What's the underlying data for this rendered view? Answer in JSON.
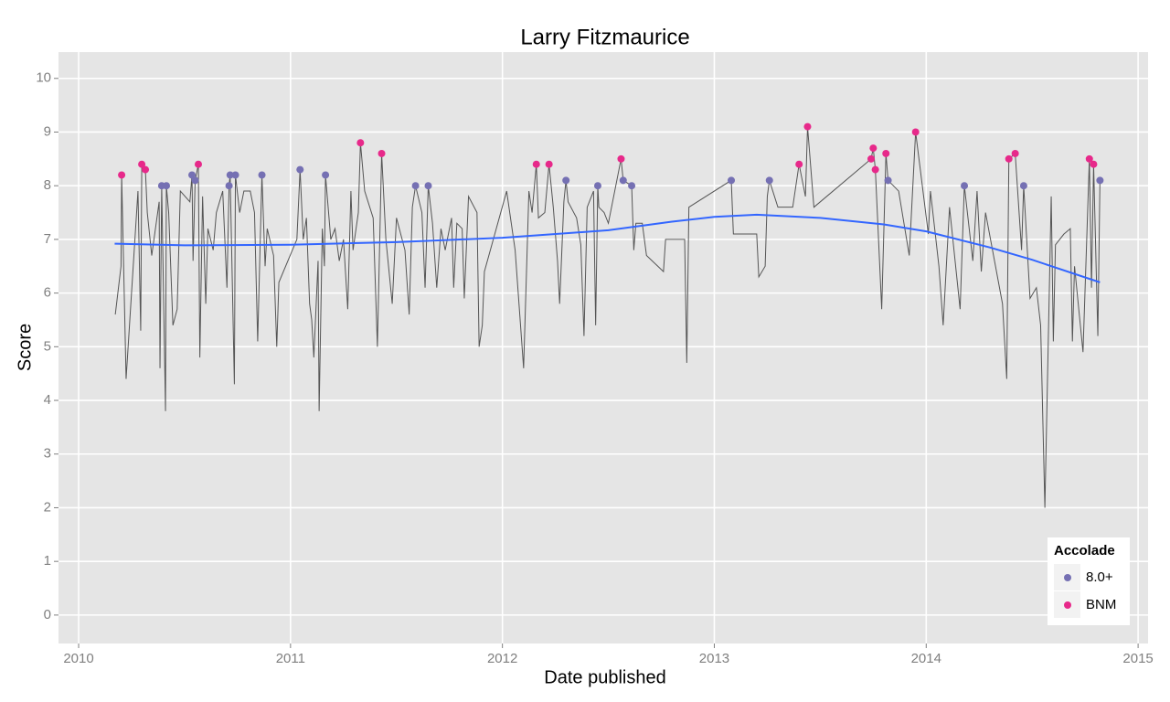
{
  "chart_data": {
    "type": "line",
    "title": "Larry Fitzmaurice",
    "x_label": "Date published",
    "y_label": "Score",
    "xlim": [
      2009.905,
      2015.047
    ],
    "ylim": [
      -0.53,
      10.49
    ],
    "xticks": [
      2010,
      2011,
      2012,
      2013,
      2014,
      2015
    ],
    "yticks": [
      0,
      1,
      2,
      3,
      4,
      5,
      6,
      7,
      8,
      9,
      10
    ],
    "grid": true,
    "line": {
      "color": "#555555",
      "x": [
        2010.173,
        2010.2,
        2010.203,
        2010.224,
        2010.28,
        2010.293,
        2010.298,
        2010.315,
        2010.324,
        2010.345,
        2010.38,
        2010.384,
        2010.392,
        2010.41,
        2010.414,
        2010.425,
        2010.445,
        2010.465,
        2010.48,
        2010.525,
        2010.535,
        2010.54,
        2010.55,
        2010.565,
        2010.572,
        2010.585,
        2010.6,
        2010.61,
        2010.635,
        2010.65,
        2010.68,
        2010.7,
        2010.71,
        2010.715,
        2010.735,
        2010.74,
        2010.76,
        2010.78,
        2010.81,
        2010.83,
        2010.845,
        2010.865,
        2010.88,
        2010.89,
        2010.92,
        2010.935,
        2010.945,
        2011.03,
        2011.045,
        2011.06,
        2011.075,
        2011.09,
        2011.1,
        2011.11,
        2011.13,
        2011.135,
        2011.15,
        2011.16,
        2011.165,
        2011.19,
        2011.21,
        2011.23,
        2011.25,
        2011.27,
        2011.285,
        2011.295,
        2011.32,
        2011.33,
        2011.35,
        2011.39,
        2011.41,
        2011.43,
        2011.45,
        2011.48,
        2011.5,
        2011.54,
        2011.56,
        2011.575,
        2011.59,
        2011.62,
        2011.635,
        2011.65,
        2011.67,
        2011.69,
        2011.71,
        2011.73,
        2011.76,
        2011.77,
        2011.785,
        2011.81,
        2011.82,
        2011.84,
        2011.88,
        2011.89,
        2011.905,
        2011.915,
        2012.02,
        2012.06,
        2012.1,
        2012.125,
        2012.14,
        2012.16,
        2012.17,
        2012.2,
        2012.22,
        2012.24,
        2012.26,
        2012.27,
        2012.29,
        2012.3,
        2012.31,
        2012.35,
        2012.37,
        2012.385,
        2012.4,
        2012.43,
        2012.44,
        2012.45,
        2012.455,
        2012.48,
        2012.5,
        2012.56,
        2012.57,
        2012.61,
        2012.62,
        2012.63,
        2012.66,
        2012.68,
        2012.76,
        2012.77,
        2012.86,
        2012.87,
        2012.88,
        2013.08,
        2013.09,
        2013.2,
        2013.21,
        2013.24,
        2013.25,
        2013.26,
        2013.3,
        2013.37,
        2013.4,
        2013.43,
        2013.44,
        2013.47,
        2013.74,
        2013.75,
        2013.76,
        2013.79,
        2013.81,
        2013.82,
        2013.87,
        2013.92,
        2013.95,
        2014.01,
        2014.02,
        2014.06,
        2014.08,
        2014.11,
        2014.16,
        2014.18,
        2014.22,
        2014.24,
        2014.26,
        2014.28,
        2014.36,
        2014.38,
        2014.39,
        2014.42,
        2014.45,
        2014.46,
        2014.49,
        2014.52,
        2014.54,
        2014.56,
        2014.59,
        2014.6,
        2014.61,
        2014.65,
        2014.68,
        2014.69,
        2014.7,
        2014.74,
        2014.77,
        2014.78,
        2014.79,
        2014.81,
        2014.82
      ],
      "values": [
        5.6,
        6.5,
        8.2,
        4.4,
        7.9,
        5.3,
        8.4,
        8.3,
        7.5,
        6.7,
        7.7,
        4.6,
        8.0,
        3.8,
        8.0,
        7.5,
        5.4,
        5.7,
        7.9,
        7.7,
        8.2,
        6.6,
        8.1,
        8.4,
        4.8,
        7.8,
        5.8,
        7.2,
        6.8,
        7.5,
        7.9,
        6.1,
        8.0,
        8.2,
        4.3,
        8.2,
        7.5,
        7.9,
        7.9,
        7.5,
        5.1,
        8.2,
        6.5,
        7.2,
        6.7,
        5.0,
        6.2,
        7.0,
        8.3,
        7.0,
        7.4,
        5.8,
        5.5,
        4.8,
        6.6,
        3.8,
        7.2,
        6.5,
        8.2,
        7.0,
        7.2,
        6.6,
        7.0,
        5.7,
        7.9,
        6.8,
        7.5,
        8.8,
        7.9,
        7.4,
        5.0,
        8.6,
        7.0,
        5.8,
        7.4,
        6.8,
        5.6,
        7.6,
        8.0,
        7.5,
        6.1,
        8.0,
        7.3,
        6.1,
        7.2,
        6.8,
        7.4,
        6.1,
        7.3,
        7.2,
        5.9,
        7.8,
        7.5,
        5.0,
        5.4,
        6.4,
        7.9,
        6.8,
        4.6,
        7.9,
        7.5,
        8.4,
        7.4,
        7.5,
        8.4,
        7.6,
        6.6,
        5.8,
        7.7,
        8.1,
        7.7,
        7.4,
        6.9,
        5.2,
        7.6,
        7.9,
        5.4,
        8.0,
        7.6,
        7.5,
        7.3,
        8.5,
        8.1,
        8.0,
        6.8,
        7.3,
        7.3,
        6.7,
        6.4,
        7.0,
        7.0,
        4.7,
        7.6,
        8.1,
        7.1,
        7.1,
        6.3,
        6.5,
        7.8,
        8.1,
        7.6,
        7.6,
        8.4,
        7.8,
        9.1,
        7.6,
        8.5,
        8.7,
        8.3,
        5.7,
        8.6,
        8.1,
        7.9,
        6.7,
        9.0,
        7.1,
        7.9,
        6.5,
        5.4,
        7.6,
        5.7,
        8.0,
        6.6,
        7.9,
        6.4,
        7.5,
        5.8,
        4.4,
        8.5,
        8.6,
        6.8,
        8.0,
        5.9,
        6.1,
        5.4,
        2.0,
        7.8,
        5.1,
        6.9,
        7.1,
        7.2,
        5.1,
        6.5,
        4.9,
        8.5,
        6.1,
        8.4,
        5.2,
        8.1
      ]
    },
    "smooth": {
      "color": "#3366ff",
      "x": [
        2010.17,
        2010.5,
        2011.0,
        2011.5,
        2012.0,
        2012.5,
        2012.8,
        2013.0,
        2013.2,
        2013.5,
        2013.8,
        2014.0,
        2014.3,
        2014.5,
        2014.82
      ],
      "values": [
        6.92,
        6.89,
        6.9,
        6.95,
        7.03,
        7.17,
        7.33,
        7.42,
        7.46,
        7.4,
        7.28,
        7.15,
        6.85,
        6.62,
        6.2
      ]
    },
    "legend": {
      "title": "Accolade",
      "position": "bottom-right"
    },
    "series": [
      {
        "name": "8.0+",
        "color": "#7570b3",
        "x": [
          2010.392,
          2010.414,
          2010.535,
          2010.55,
          2010.71,
          2010.715,
          2010.74,
          2010.865,
          2011.045,
          2011.165,
          2011.59,
          2011.65,
          2012.3,
          2012.45,
          2012.57,
          2012.61,
          2013.08,
          2013.26,
          2013.82,
          2014.18,
          2014.46,
          2014.82
        ],
        "values": [
          8.0,
          8.0,
          8.2,
          8.1,
          8.0,
          8.2,
          8.2,
          8.2,
          8.3,
          8.2,
          8.0,
          8.0,
          8.1,
          8.0,
          8.1,
          8.0,
          8.1,
          8.1,
          8.1,
          8.0,
          8.0,
          8.1
        ]
      },
      {
        "name": "BNM",
        "color": "#e7298a",
        "x": [
          2010.203,
          2010.298,
          2010.315,
          2010.565,
          2011.33,
          2011.43,
          2012.16,
          2012.22,
          2012.56,
          2013.4,
          2013.44,
          2013.74,
          2013.75,
          2013.76,
          2013.81,
          2013.95,
          2014.39,
          2014.42,
          2014.77,
          2014.79
        ],
        "values": [
          8.2,
          8.4,
          8.3,
          8.4,
          8.8,
          8.6,
          8.4,
          8.4,
          8.5,
          8.4,
          9.1,
          8.5,
          8.7,
          8.3,
          8.6,
          9.0,
          8.5,
          8.6,
          8.5,
          8.4
        ]
      }
    ]
  }
}
